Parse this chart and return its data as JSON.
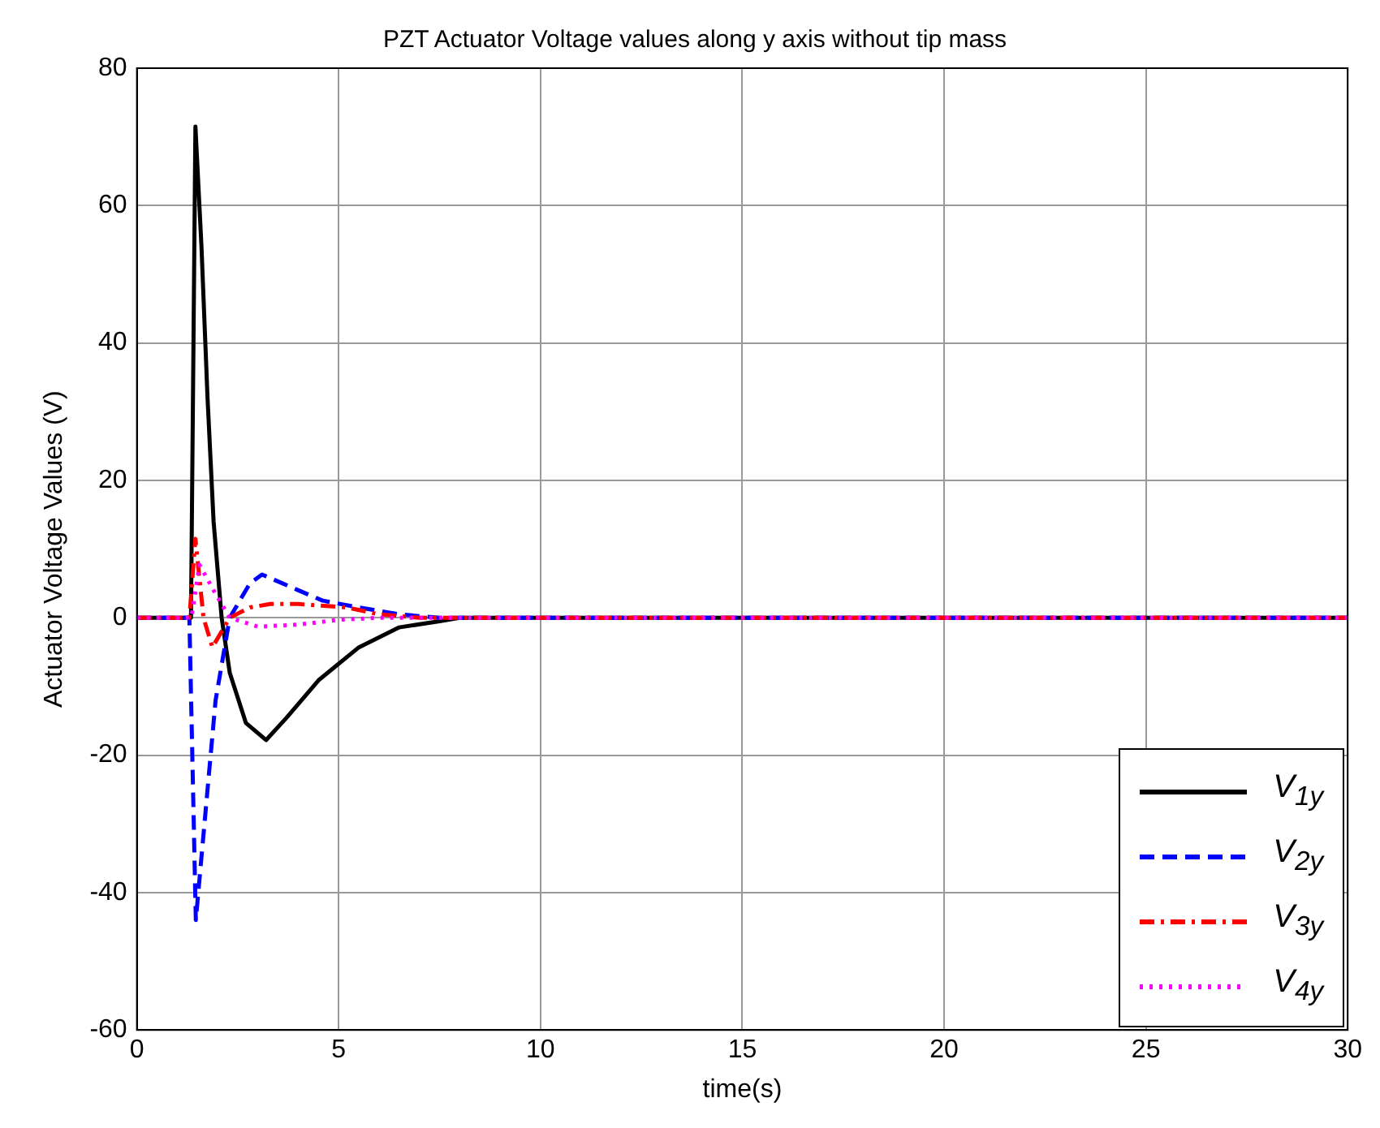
{
  "chart_data": {
    "type": "line",
    "title": "PZT Actuator Voltage values along y axis without tip mass",
    "xlabel": "time(s)",
    "ylabel": "Actuator Voltage Values (V)",
    "xlim": [
      0,
      30
    ],
    "xticks": [
      0,
      5,
      10,
      15,
      20,
      25,
      30
    ],
    "ylim": [
      -60,
      80
    ],
    "yticks": [
      -60,
      -40,
      -20,
      0,
      20,
      40,
      60,
      80
    ],
    "grid": true,
    "legend": "bottom right",
    "marker": "none",
    "series": [
      {
        "name": "V$_{1y}$",
        "color": "#000000",
        "line_style": "solid",
        "x": [
          0,
          1.34,
          1.45,
          1.6,
          1.75,
          1.9,
          2.1,
          2.3,
          2.7,
          3.2,
          3.7,
          4.5,
          5.5,
          6.5,
          7.5,
          8,
          30
        ],
        "values": [
          0,
          0,
          71.5,
          54,
          32,
          14,
          0,
          -8,
          -15.3,
          -17.8,
          -14.6,
          -9.1,
          -4.3,
          -1.4,
          -0.5,
          0,
          0
        ]
      },
      {
        "name": "V$_{2y}$",
        "color": "#0000ff",
        "line_style": "dashed",
        "x": [
          0,
          1.3,
          1.46,
          1.75,
          1.95,
          2.3,
          2.8,
          3.1,
          4,
          4.6,
          5.5,
          6.5,
          7.5,
          30
        ],
        "values": [
          0,
          0,
          -44,
          -25,
          -12,
          0,
          5,
          6.3,
          4,
          2.5,
          1.5,
          0.5,
          0,
          0
        ]
      },
      {
        "name": "V$_{3y}$",
        "color": "#ff0000",
        "line_style": "dashdot",
        "x": [
          0,
          1.3,
          1.45,
          1.65,
          1.87,
          2.3,
          2.8,
          3.3,
          4,
          5.2,
          6,
          7,
          30
        ],
        "values": [
          0,
          0,
          11.5,
          0,
          -4.3,
          0,
          1.5,
          2,
          2,
          1.5,
          0.5,
          0,
          0
        ]
      },
      {
        "name": "V$_{4y}$",
        "color": "#ff00ff",
        "line_style": "dotted",
        "x": [
          0,
          1.35,
          1.55,
          1.9,
          2.3,
          3,
          4,
          5,
          6,
          30
        ],
        "values": [
          0,
          0,
          7.7,
          4,
          0,
          -1.3,
          -1,
          -0.3,
          0,
          0
        ]
      }
    ]
  }
}
